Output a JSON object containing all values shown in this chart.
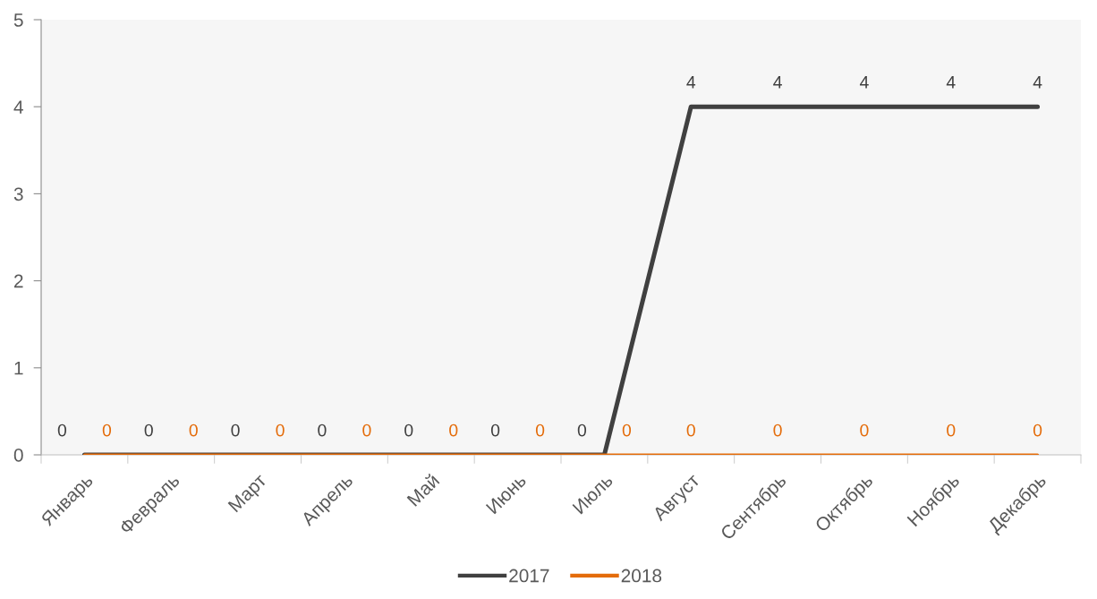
{
  "chart_data": {
    "type": "line",
    "categories": [
      "Январь",
      "Февраль",
      "Март",
      "Апрель",
      "Май",
      "Июнь",
      "Июль",
      "Август",
      "Сентябрь",
      "Октябрь",
      "Ноябрь",
      "Декабрь"
    ],
    "series": [
      {
        "name": "2017",
        "color": "#404040",
        "values": [
          0,
          0,
          0,
          0,
          0,
          0,
          0,
          4,
          4,
          4,
          4,
          4
        ]
      },
      {
        "name": "2018",
        "color": "#e46c0a",
        "values": [
          0,
          0,
          0,
          0,
          0,
          0,
          0,
          0,
          0,
          0,
          0,
          0
        ]
      }
    ],
    "ylim": [
      0,
      5
    ],
    "yticks": [
      0,
      1,
      2,
      3,
      4,
      5
    ],
    "data_labels": true,
    "legend": "bottom",
    "grid": false,
    "marker": "none",
    "line_style": "solid"
  }
}
